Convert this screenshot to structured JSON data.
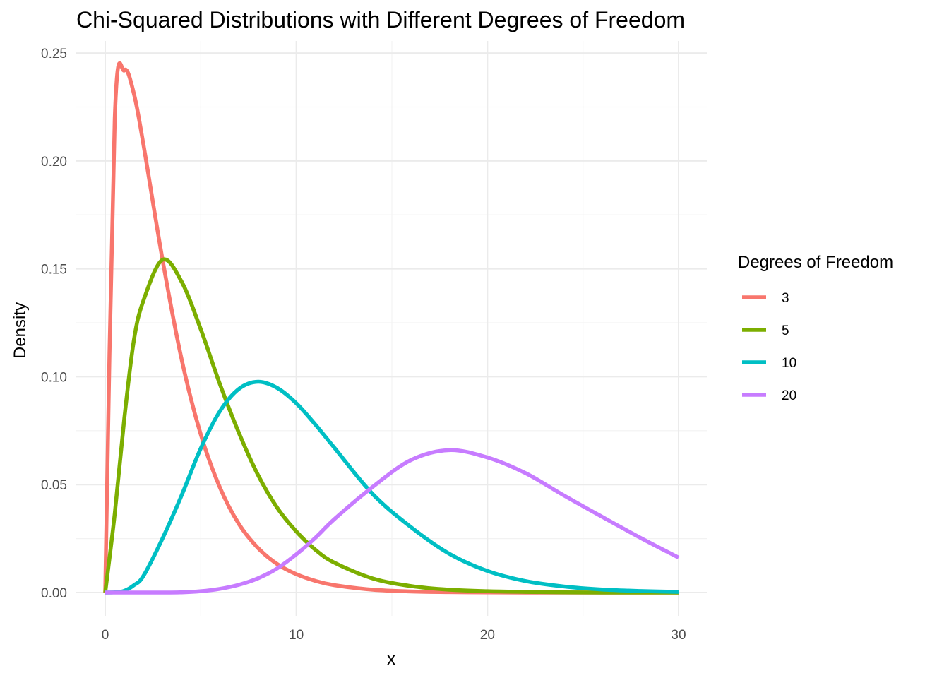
{
  "chart_data": {
    "type": "line",
    "title": "Chi-Squared Distributions with Different Degrees of Freedom",
    "xlabel": "x",
    "ylabel": "Density",
    "xlim": [
      0,
      30
    ],
    "ylim": [
      0,
      0.25
    ],
    "x_ticks": [
      0,
      10,
      20,
      30
    ],
    "x_tick_labels": [
      "0",
      "10",
      "20",
      "30"
    ],
    "y_ticks": [
      0,
      0.05,
      0.1,
      0.15,
      0.2,
      0.25
    ],
    "y_tick_labels": [
      "0.00",
      "0.05",
      "0.10",
      "0.15",
      "0.20",
      "0.25"
    ],
    "grid": true,
    "legend": {
      "title": "Degrees of Freedom",
      "position": "right"
    },
    "x": [
      0,
      0.5,
      1,
      1.5,
      2,
      3,
      4,
      5,
      6,
      7,
      8,
      9,
      10,
      11,
      12,
      14,
      16,
      18,
      20,
      22,
      24,
      26,
      28,
      30
    ],
    "series": [
      {
        "name": "3",
        "color": "#F8766D",
        "values": [
          0,
          0.2197,
          0.242,
          0.2312,
          0.2076,
          0.1542,
          0.108,
          0.0733,
          0.0487,
          0.0317,
          0.0206,
          0.0132,
          0.0085,
          0.0054,
          0.0034,
          0.0013,
          0.0005,
          0.0002,
          0.0001,
          0.0,
          0.0,
          0.0,
          0.0,
          0.0
        ]
      },
      {
        "name": "5",
        "color": "#7CAE00",
        "values": [
          0,
          0.0366,
          0.0807,
          0.1169,
          0.1353,
          0.1542,
          0.144,
          0.122,
          0.0966,
          0.0739,
          0.0544,
          0.0393,
          0.0283,
          0.0198,
          0.0138,
          0.0065,
          0.003,
          0.0013,
          0.0006,
          0.0003,
          0.0001,
          0.0,
          0.0,
          0.0
        ]
      },
      {
        "name": "10",
        "color": "#00BFC4",
        "values": [
          0,
          0.0001,
          0.0008,
          0.0034,
          0.0077,
          0.0251,
          0.0451,
          0.0668,
          0.084,
          0.0944,
          0.0977,
          0.0948,
          0.0877,
          0.0778,
          0.067,
          0.0456,
          0.0303,
          0.018,
          0.01,
          0.0053,
          0.0028,
          0.0014,
          0.0007,
          0.0003
        ]
      },
      {
        "name": "20",
        "color": "#C77CFF",
        "values": [
          0,
          0.0,
          0.0,
          0.0,
          0.0,
          0.0,
          0.0001,
          0.0006,
          0.0017,
          0.0036,
          0.0066,
          0.0112,
          0.0177,
          0.0254,
          0.0341,
          0.049,
          0.0614,
          0.066,
          0.0626,
          0.0553,
          0.045,
          0.0351,
          0.0254,
          0.0162
        ]
      }
    ]
  }
}
